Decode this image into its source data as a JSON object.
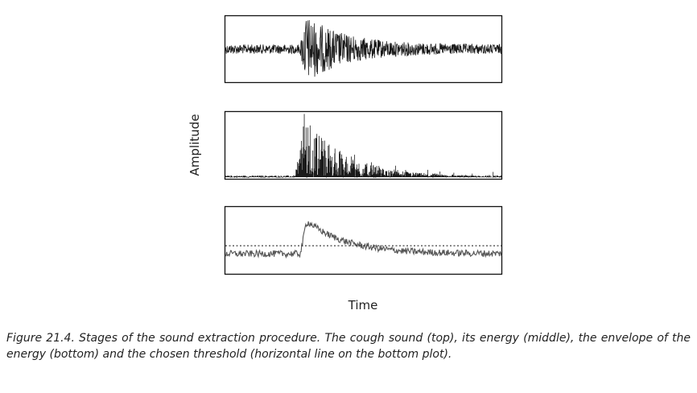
{
  "chart_data": {
    "type": "line",
    "xlabel": "Time",
    "ylabel": "Amplitude",
    "panels": [
      {
        "name": "cough-sound",
        "description_position": "top",
        "signal": "waveform",
        "baseline_level": 0.5,
        "burst_start": 0.27,
        "burst_peak": 0.29,
        "noise_amplitude": 0.07,
        "burst_amplitude": 0.45
      },
      {
        "name": "energy",
        "description_position": "middle",
        "signal": "energy",
        "baseline_level": 0.05,
        "burst_start": 0.25,
        "burst_peak": 0.29,
        "burst_amplitude": 0.95
      },
      {
        "name": "energy-envelope",
        "description_position": "bottom",
        "signal": "envelope",
        "baseline_level": 0.3,
        "burst_start": 0.27,
        "burst_peak": 0.29,
        "burst_amplitude": 0.8,
        "threshold": 0.42
      }
    ],
    "colors": {
      "signal": "#1a1a1a",
      "envelope": "#555555",
      "threshold": "#111111",
      "frame": "#111111"
    }
  },
  "caption": "Figure 21.4. Stages of the sound extraction procedure. The cough sound (top), its energy (middle), the envelope of the energy (bottom) and the chosen threshold (horizontal line on the bottom plot)."
}
